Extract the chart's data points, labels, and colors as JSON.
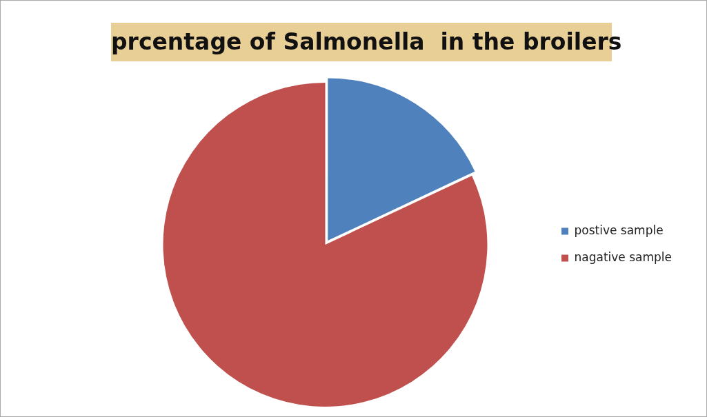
{
  "chart_data": {
    "type": "pie",
    "title": "prcentage of Salmonella  in the broilers",
    "categories": [
      "postive sample",
      "nagative sample"
    ],
    "values": [
      18,
      82
    ],
    "colors": [
      "#4f81bd",
      "#c0504d"
    ],
    "legend": "right"
  }
}
